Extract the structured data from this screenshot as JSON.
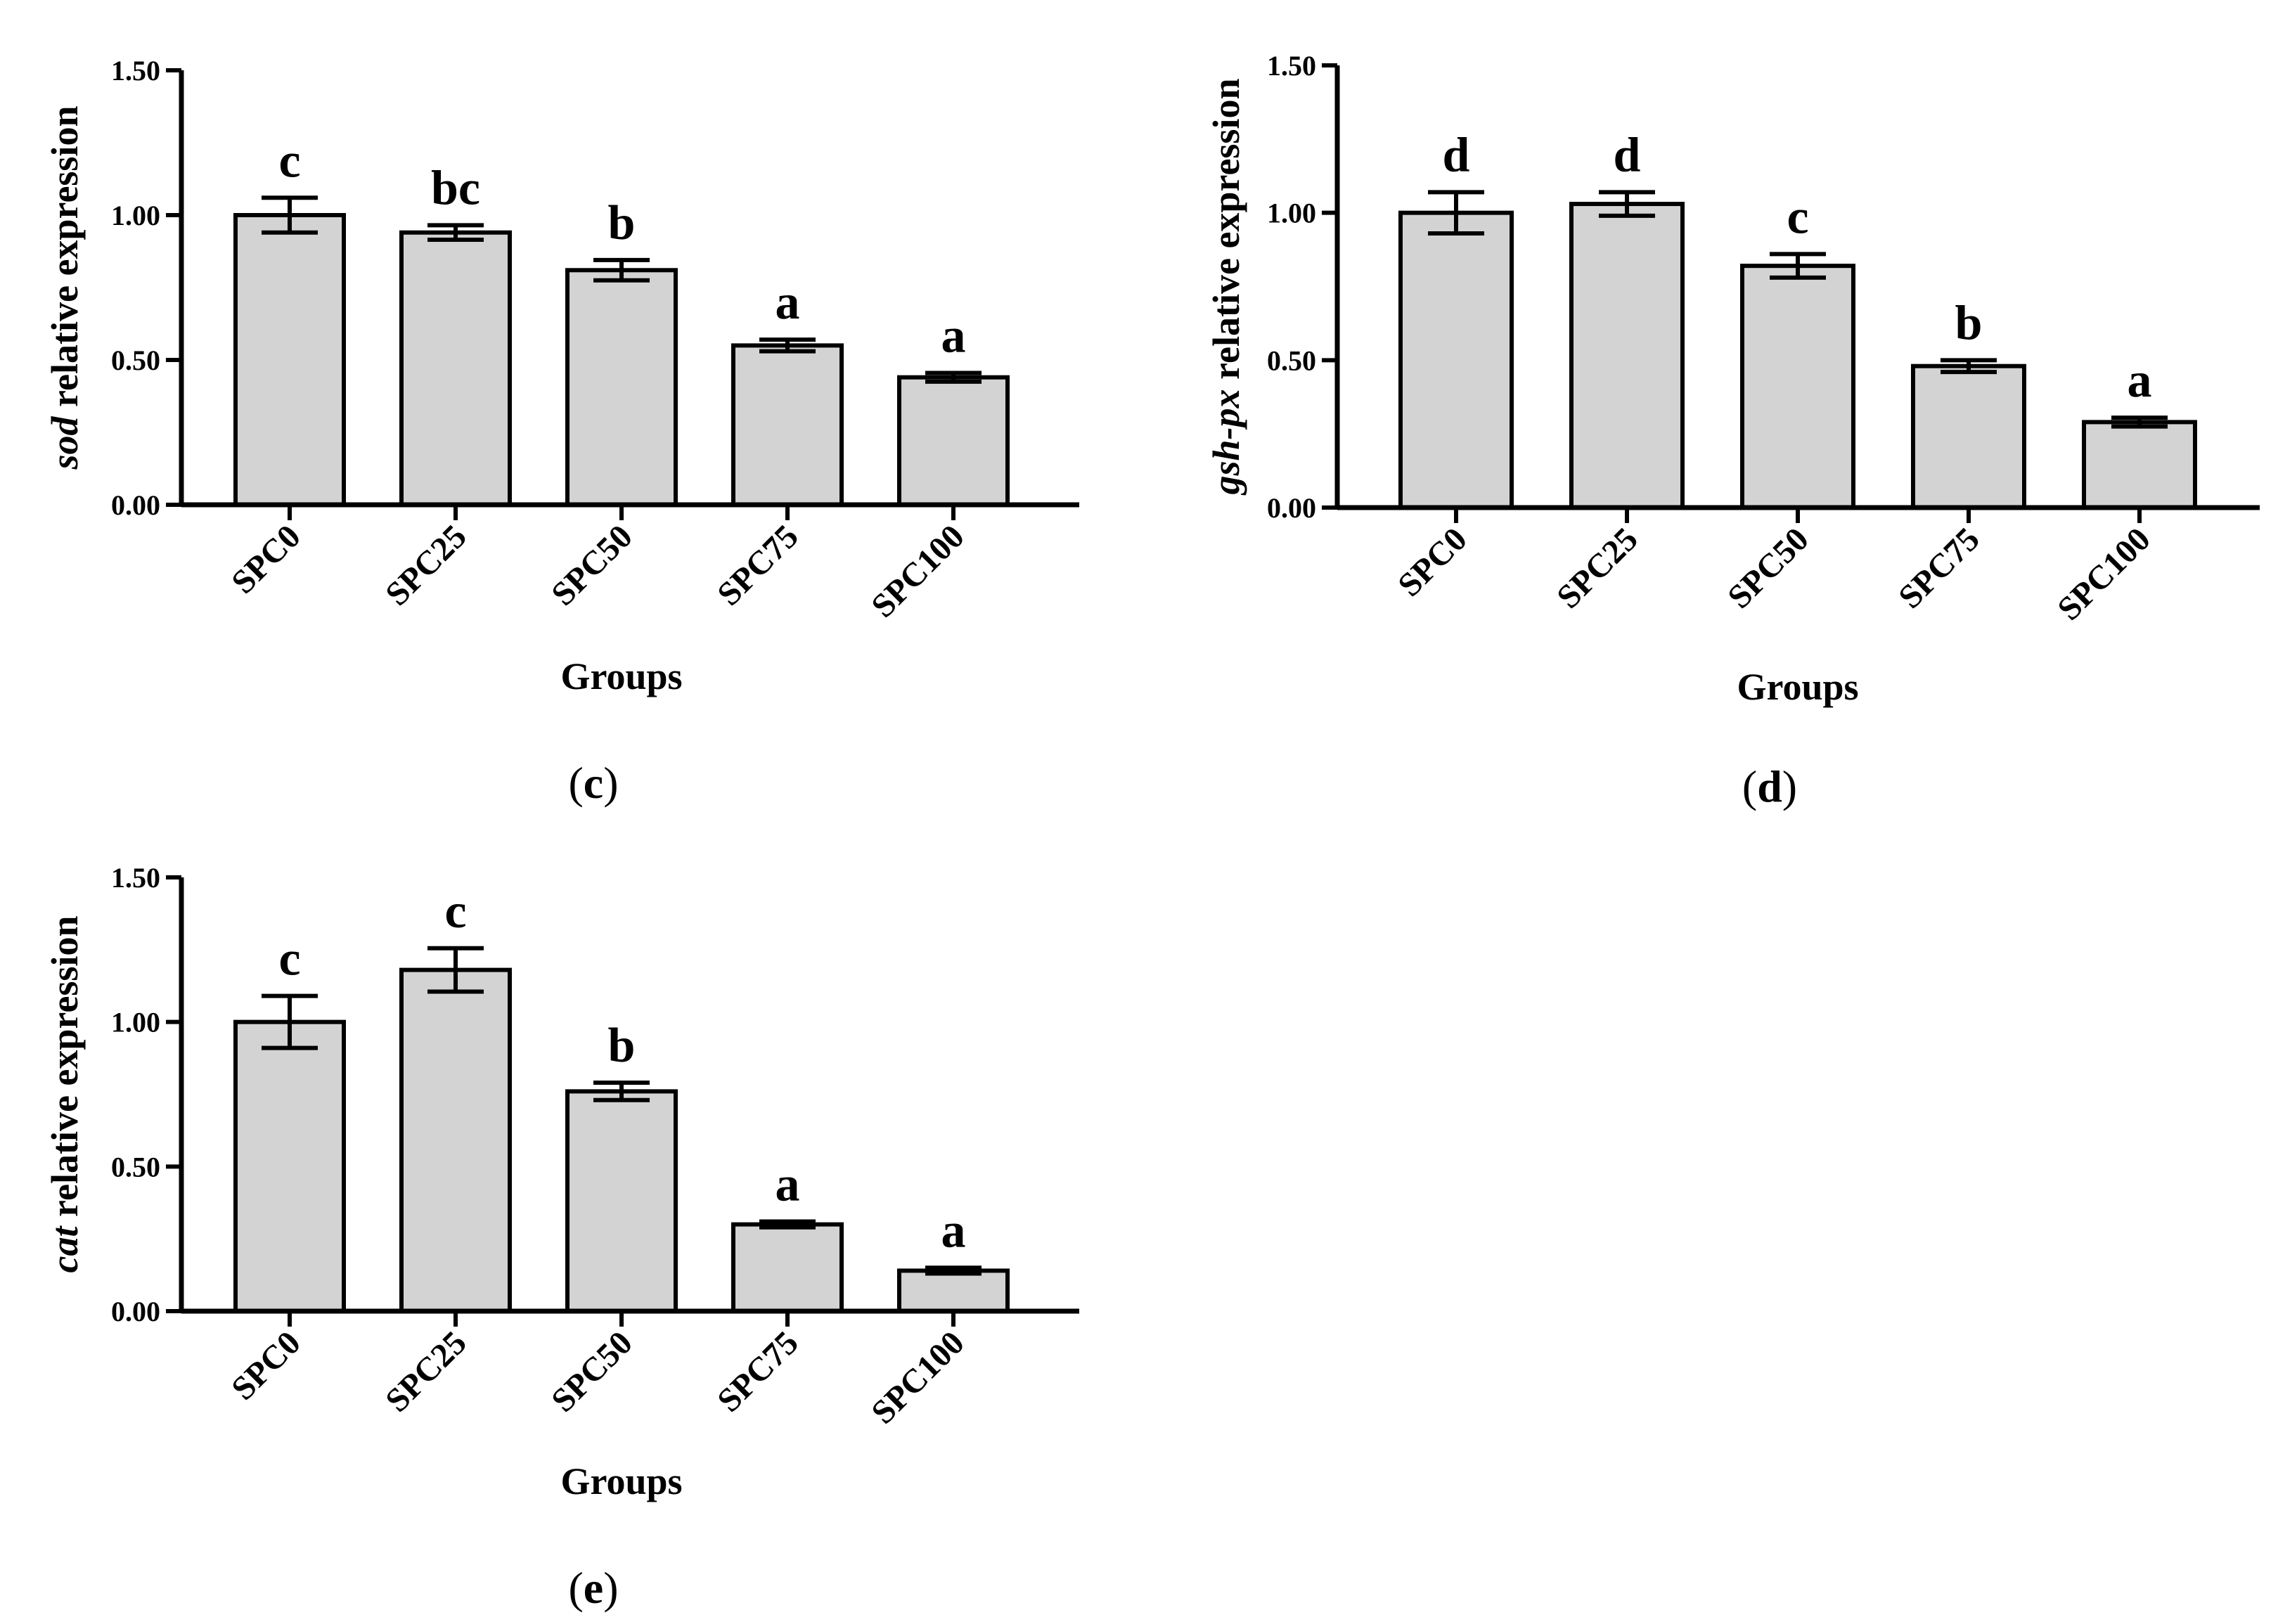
{
  "chart_data": [
    {
      "id": "c",
      "type": "bar",
      "panel_label": "c",
      "ylabel_gene": "sod",
      "ylabel_rest": " relative expression",
      "xlabel": "Groups",
      "categories": [
        "SPC0",
        "SPC25",
        "SPC50",
        "SPC75",
        "SPC100"
      ],
      "values": [
        1.0,
        0.94,
        0.81,
        0.55,
        0.44
      ],
      "errors": [
        0.06,
        0.025,
        0.035,
        0.02,
        0.015
      ],
      "letters": [
        "c",
        "bc",
        "b",
        "a",
        "a"
      ],
      "yticks": [
        "0.00",
        "0.50",
        "1.00",
        "1.50"
      ],
      "ylim": [
        0,
        1.5
      ],
      "color": "#d3d3d3"
    },
    {
      "id": "d",
      "type": "bar",
      "panel_label": "d",
      "ylabel_gene": "gsh-px",
      "ylabel_rest": " relative expression",
      "xlabel": "Groups",
      "categories": [
        "SPC0",
        "SPC25",
        "SPC50",
        "SPC75",
        "SPC100"
      ],
      "values": [
        1.0,
        1.03,
        0.82,
        0.48,
        0.29
      ],
      "errors": [
        0.07,
        0.04,
        0.04,
        0.02,
        0.015
      ],
      "letters": [
        "d",
        "d",
        "c",
        "b",
        "a"
      ],
      "yticks": [
        "0.00",
        "0.50",
        "1.00",
        "1.50"
      ],
      "ylim": [
        0,
        1.5
      ],
      "color": "#d3d3d3"
    },
    {
      "id": "e",
      "type": "bar",
      "panel_label": "e",
      "ylabel_gene": "cat",
      "ylabel_rest": " relative expression",
      "xlabel": "Groups",
      "categories": [
        "SPC0",
        "SPC25",
        "SPC50",
        "SPC75",
        "SPC100"
      ],
      "values": [
        1.0,
        1.18,
        0.76,
        0.3,
        0.14
      ],
      "errors": [
        0.09,
        0.075,
        0.03,
        0.01,
        0.01
      ],
      "letters": [
        "c",
        "c",
        "b",
        "a",
        "a"
      ],
      "yticks": [
        "0.00",
        "0.50",
        "1.00",
        "1.50"
      ],
      "ylim": [
        0,
        1.5
      ],
      "color": "#d3d3d3"
    }
  ]
}
